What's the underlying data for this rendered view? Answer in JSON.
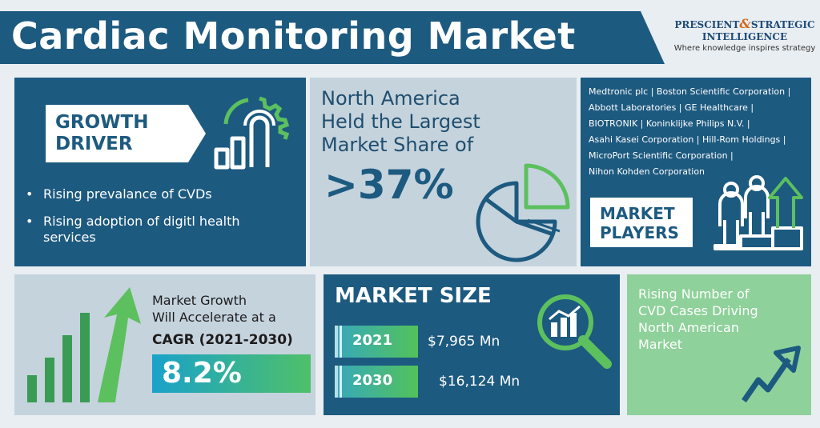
{
  "header": {
    "title": "Cardiac Monitoring Market"
  },
  "logo": {
    "line1a": "PRESCIENT",
    "amp": "&",
    "line1b": "STRATEGIC",
    "line2": "INTELLIGENCE",
    "tagline": "Where knowledge inspires strategy"
  },
  "growth": {
    "title_line1": "GROWTH",
    "title_line2": "DRIVER",
    "bullets": [
      "Rising prevalance of CVDs",
      "Rising adoption of digitl health",
      "services"
    ]
  },
  "share": {
    "text_line1": "North America",
    "text_line2": "Held the Largest",
    "text_line3": "Market Share of",
    "value": ">37%"
  },
  "players": {
    "line1": "Medtronic plc | Boston Scientific Corporation |",
    "line2": "Abbott Laboratories | GE Healthcare |",
    "line3": "BIOTRONIK | Koninklijke Philips N.V. |",
    "line4": "Asahi Kasei Corporation | Hill-Rom Holdings |",
    "line5": "MicroPort Scientific Corporation |",
    "line6": "Nihon Kohden Corporation",
    "title_line1": "MARKET",
    "title_line2": "PLAYERS"
  },
  "cagr": {
    "line1": "Market Growth",
    "line2": "Will Accelerate at a",
    "bold": "CAGR (2021-2030)",
    "value": "8.2%"
  },
  "market_size": {
    "title": "MARKET SIZE",
    "rows": [
      {
        "year": "2021",
        "value": "$7,965 Mn"
      },
      {
        "year": "2030",
        "value": "$16,124 Mn"
      }
    ]
  },
  "cases": {
    "line1": "Rising Number of",
    "line2": "CVD Cases Driving",
    "line3": "North American",
    "line4": "Market"
  },
  "colors": {
    "navy": "#1d5a80",
    "light": "#c5d3dd",
    "green": "#5cc05e",
    "mint": "#8ed19a"
  }
}
